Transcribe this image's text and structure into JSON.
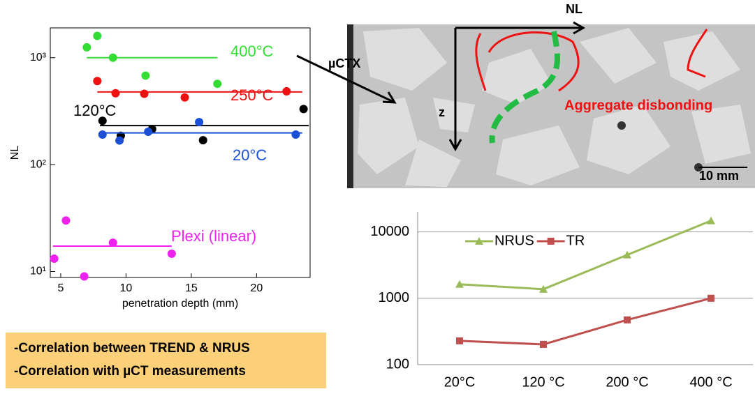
{
  "chart_data": [
    {
      "type": "scatter",
      "ylabel": "NL",
      "xlabel": "penetration depth (mm)",
      "ylog": true,
      "xlim": [
        4.2,
        24.1
      ],
      "ylim": [
        8.8,
        1900
      ],
      "xticks": [
        5,
        10,
        15,
        20
      ],
      "yticks": [
        {
          "value": 10,
          "label": "10¹"
        },
        {
          "value": 100,
          "label": "10²"
        },
        {
          "value": 1000,
          "label": "10³"
        }
      ],
      "series": [
        {
          "name": "400°C",
          "color": "#33dd33",
          "x": [
            7,
            7.8,
            9,
            11.5,
            17
          ],
          "values": [
            1250,
            1600,
            1000,
            680,
            570
          ],
          "fit": {
            "x": [
              7,
              17
            ],
            "values": [
              1000,
              1000
            ]
          }
        },
        {
          "name": "250°C",
          "color": "#ee1111",
          "x": [
            7.8,
            9.2,
            11.4,
            14.5,
            22.3
          ],
          "values": [
            605,
            465,
            460,
            425,
            485
          ],
          "fit": {
            "x": [
              7.8,
              23.5
            ],
            "values": [
              478,
              478
            ]
          }
        },
        {
          "name": "120°C",
          "color": "#000000",
          "x": [
            8.2,
            9.6,
            12,
            15.9,
            23.6
          ],
          "values": [
            257,
            186,
            215,
            169,
            331
          ],
          "fit": {
            "x": [
              8,
              24
            ],
            "values": [
              232,
              232
            ]
          }
        },
        {
          "name": "20°C",
          "color": "#1a4fd6",
          "x": [
            8.2,
            9.5,
            11.7,
            15.6,
            23
          ],
          "values": [
            191,
            168,
            203,
            250,
            191
          ],
          "fit": {
            "x": [
              8,
              23.5
            ],
            "values": [
              198,
              198
            ]
          }
        },
        {
          "name": "Plexi (linear)",
          "color": "#ee22ee",
          "x": [
            4.5,
            5.4,
            6.8,
            9,
            13.5
          ],
          "values": [
            13.2,
            30,
            9,
            18.6,
            14.7
          ],
          "fit": {
            "x": [
              4.4,
              13.5
            ],
            "values": [
              17.3,
              17.3
            ]
          }
        }
      ]
    },
    {
      "type": "line",
      "ylog": true,
      "grid": true,
      "legend": "top-left",
      "categories": [
        "20°C",
        "120 °C",
        "200 °C",
        "400 °C"
      ],
      "ylim": [
        100,
        20000
      ],
      "yticks": [
        100,
        1000,
        10000
      ],
      "series": [
        {
          "name": "NRUS",
          "color": "#9bbb59",
          "marker": "triangle",
          "values": [
            1625,
            1370,
            4500,
            14740
          ]
        },
        {
          "name": "TR",
          "color": "#c0504d",
          "marker": "square",
          "values": [
            228,
            202,
            472,
            1000
          ]
        }
      ]
    }
  ],
  "image": {
    "axis_nl": "NL",
    "axis_z": "z",
    "technique": "µCTX",
    "annotation": "Aggregate disbonding",
    "scale": "10 mm"
  },
  "note": {
    "lines": [
      "-Correlation between TREND & NRUS",
      "-Correlation with µCT measurements"
    ]
  }
}
